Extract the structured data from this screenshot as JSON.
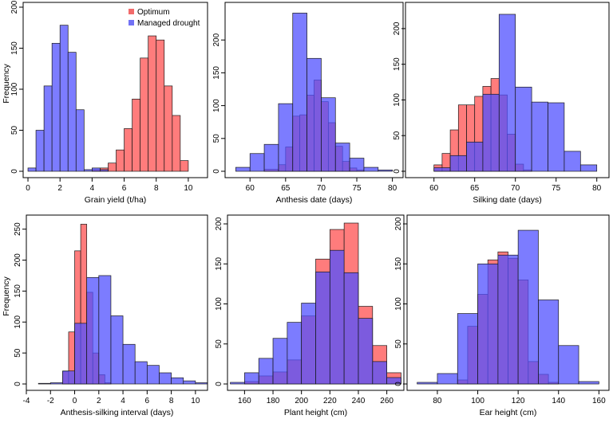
{
  "colors": {
    "optimum": "rgba(255,80,80,0.75)",
    "drought": "rgba(80,80,255,0.75)",
    "axis": "#000000"
  },
  "legend": {
    "entries": [
      {
        "label": "Optimum",
        "color": "#f26b6b"
      },
      {
        "label": "Managed drought",
        "color": "#7272f5"
      }
    ],
    "placement": "top-right of first panel"
  },
  "chart_data": [
    {
      "type": "histogram",
      "xlabel": "Grain yield (t/ha)",
      "ylabel": "Frequency",
      "xlim": [
        -0.3,
        11.2
      ],
      "ylim": [
        0,
        200
      ],
      "xticks": [
        0,
        2,
        4,
        6,
        8,
        10
      ],
      "yticks": [
        0,
        50,
        100,
        150,
        200
      ],
      "series": [
        {
          "name": "Optimum",
          "edges": [
            4.0,
            4.5,
            5.0,
            5.5,
            6.0,
            6.5,
            7.0,
            7.5,
            8.0,
            8.5,
            9.0,
            9.5,
            10.0
          ],
          "counts": [
            2,
            4,
            10,
            26,
            52,
            88,
            138,
            165,
            160,
            104,
            68,
            13
          ]
        },
        {
          "name": "Managed drought",
          "edges": [
            0.0,
            0.5,
            1.0,
            1.5,
            2.0,
            2.5,
            3.0,
            3.5,
            4.0,
            4.5,
            5.0
          ],
          "counts": [
            4,
            50,
            104,
            156,
            178,
            145,
            75,
            2,
            4,
            2
          ]
        }
      ]
    },
    {
      "type": "histogram",
      "xlabel": "Anthesis date (days)",
      "ylabel": "",
      "xlim": [
        56.5,
        81.5
      ],
      "ylim": [
        0,
        250
      ],
      "xticks": [
        60,
        65,
        70,
        75,
        80
      ],
      "yticks": [
        0,
        50,
        100,
        150,
        200
      ],
      "series": [
        {
          "name": "Optimum",
          "edges": [
            62,
            64,
            65,
            66,
            67,
            68,
            69,
            70,
            71,
            72,
            73,
            74,
            75,
            76
          ],
          "counts": [
            3,
            10,
            37,
            84,
            86,
            116,
            139,
            106,
            74,
            38,
            15,
            5,
            2
          ]
        },
        {
          "name": "Managed drought",
          "edges": [
            58,
            60,
            62,
            64,
            66,
            68,
            70,
            72,
            74,
            76,
            78,
            80
          ],
          "counts": [
            6,
            27,
            41,
            103,
            241,
            172,
            112,
            43,
            20,
            6,
            2
          ]
        }
      ]
    },
    {
      "type": "histogram",
      "xlabel": "Silking date (days)",
      "ylabel": "",
      "xlim": [
        56.5,
        81.5
      ],
      "ylim": [
        0,
        230
      ],
      "xticks": [
        60,
        65,
        70,
        75,
        80
      ],
      "yticks": [
        0,
        50,
        100,
        150,
        200
      ],
      "series": [
        {
          "name": "Optimum",
          "edges": [
            60,
            61,
            62,
            63,
            64,
            65,
            66,
            67,
            68,
            69,
            70,
            71,
            72
          ],
          "counts": [
            9,
            25,
            58,
            93,
            93,
            105,
            119,
            130,
            107,
            52,
            10,
            2
          ]
        },
        {
          "name": "Managed drought",
          "edges": [
            60,
            62,
            64,
            66,
            68,
            70,
            72,
            74,
            76,
            78,
            80
          ],
          "counts": [
            5,
            22,
            41,
            108,
            220,
            118,
            97,
            96,
            28,
            9
          ]
        }
      ]
    },
    {
      "type": "histogram",
      "xlabel": "Anthesis-silking interval (days)",
      "ylabel": "Frequency",
      "xlim": [
        -4,
        11
      ],
      "ylim": [
        0,
        265
      ],
      "xticks": [
        -4,
        -2,
        0,
        2,
        4,
        6,
        8,
        10
      ],
      "yticks": [
        0,
        50,
        100,
        150,
        200,
        250
      ],
      "series": [
        {
          "name": "Optimum",
          "edges": [
            -1,
            -0.5,
            0,
            0.5,
            1,
            1.5,
            2,
            2.5,
            3
          ],
          "counts": [
            20,
            84,
            215,
            258,
            148,
            50,
            15,
            2
          ]
        },
        {
          "name": "Managed drought",
          "edges": [
            -3,
            -2,
            -1,
            0,
            1,
            2,
            3,
            4,
            5,
            6,
            7,
            8,
            9,
            10,
            11
          ],
          "counts": [
            1,
            2,
            21,
            98,
            172,
            175,
            110,
            64,
            36,
            30,
            18,
            10,
            5,
            2
          ]
        }
      ]
    },
    {
      "type": "histogram",
      "xlabel": "Plant height (cm)",
      "ylabel": "",
      "xlim": [
        148,
        272
      ],
      "ylim": [
        0,
        205
      ],
      "xticks": [
        160,
        180,
        200,
        220,
        240,
        260
      ],
      "yticks": [
        0,
        50,
        100,
        150,
        200
      ],
      "series": [
        {
          "name": "Optimum",
          "edges": [
            160,
            170,
            180,
            190,
            200,
            210,
            220,
            230,
            240,
            250,
            260,
            270
          ],
          "counts": [
            3,
            10,
            15,
            30,
            85,
            156,
            193,
            201,
            97,
            48,
            14
          ]
        },
        {
          "name": "Managed drought",
          "edges": [
            150,
            160,
            170,
            180,
            190,
            200,
            210,
            220,
            230,
            240,
            250,
            260,
            270
          ],
          "counts": [
            2,
            14,
            32,
            57,
            77,
            101,
            140,
            167,
            139,
            82,
            28,
            8
          ]
        }
      ]
    },
    {
      "type": "histogram",
      "xlabel": "Ear height (cm)",
      "ylabel": "",
      "xlim": [
        65,
        165
      ],
      "ylim": [
        0,
        205
      ],
      "xticks": [
        80,
        100,
        120,
        140,
        160
      ],
      "yticks": [
        0,
        50,
        100,
        150,
        200
      ],
      "series": [
        {
          "name": "Optimum",
          "edges": [
            90,
            95,
            100,
            105,
            110,
            115,
            120,
            125,
            130,
            135,
            140
          ],
          "counts": [
            5,
            72,
            112,
            155,
            165,
            157,
            130,
            28,
            12,
            2
          ]
        },
        {
          "name": "Managed drought",
          "edges": [
            70,
            80,
            90,
            100,
            110,
            120,
            130,
            140,
            150,
            160
          ],
          "counts": [
            2,
            13,
            88,
            150,
            161,
            192,
            105,
            48,
            3
          ]
        }
      ]
    }
  ]
}
